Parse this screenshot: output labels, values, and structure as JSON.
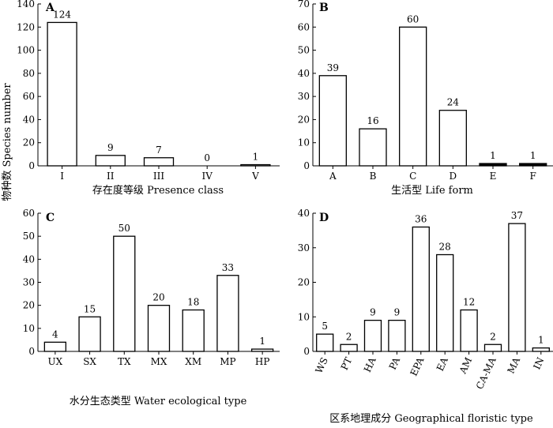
{
  "figure": {
    "shared_ylabel": "物种数 Species number"
  },
  "chart_data": [
    {
      "panel": "A",
      "type": "bar",
      "xlabel": "存在度等级 Presence class",
      "ylabel": "物种数 Species number",
      "categories": [
        "I",
        "II",
        "III",
        "IV",
        "V"
      ],
      "values": [
        124,
        9,
        7,
        0,
        1
      ],
      "data_labels": [
        "124",
        "9",
        "7",
        "0",
        "1"
      ],
      "ylim": [
        0,
        140
      ],
      "yticks": [
        0,
        20,
        40,
        60,
        80,
        100,
        120,
        140
      ],
      "grid": false
    },
    {
      "panel": "B",
      "type": "bar",
      "xlabel": "生活型 Life form",
      "ylabel": "",
      "categories": [
        "A",
        "B",
        "C",
        "D",
        "E",
        "F"
      ],
      "values": [
        39,
        16,
        60,
        24,
        1,
        1
      ],
      "data_labels": [
        "39",
        "16",
        "60",
        "24",
        "1",
        "1"
      ],
      "ylim": [
        0,
        70
      ],
      "yticks": [
        0,
        10,
        20,
        30,
        40,
        50,
        60,
        70
      ],
      "grid": false
    },
    {
      "panel": "C",
      "type": "bar",
      "xlabel": "水分生态类型 Water ecological type",
      "ylabel": "物种数 Species number",
      "categories": [
        "UX",
        "SX",
        "TX",
        "MX",
        "XM",
        "MP",
        "HP"
      ],
      "values": [
        4,
        15,
        50,
        20,
        18,
        33,
        1
      ],
      "data_labels": [
        "4",
        "15",
        "50",
        "20",
        "18",
        "33",
        "1"
      ],
      "ylim": [
        0,
        60
      ],
      "yticks": [
        0,
        10,
        20,
        30,
        40,
        50,
        60
      ],
      "grid": false
    },
    {
      "panel": "D",
      "type": "bar",
      "xlabel": "区系地理成分 Geographical floristic type",
      "ylabel": "",
      "categories": [
        "WS",
        "PT",
        "HA",
        "PA",
        "EPA",
        "EA",
        "AM",
        "CA-MA",
        "MA",
        "IN"
      ],
      "values": [
        5,
        2,
        9,
        9,
        36,
        28,
        12,
        2,
        37,
        1
      ],
      "data_labels": [
        "5",
        "2",
        "9",
        "9",
        "36",
        "28",
        "12",
        "2",
        "37",
        "1"
      ],
      "ylim": [
        0,
        40
      ],
      "yticks": [
        0,
        10,
        20,
        30,
        40
      ],
      "grid": false
    }
  ]
}
